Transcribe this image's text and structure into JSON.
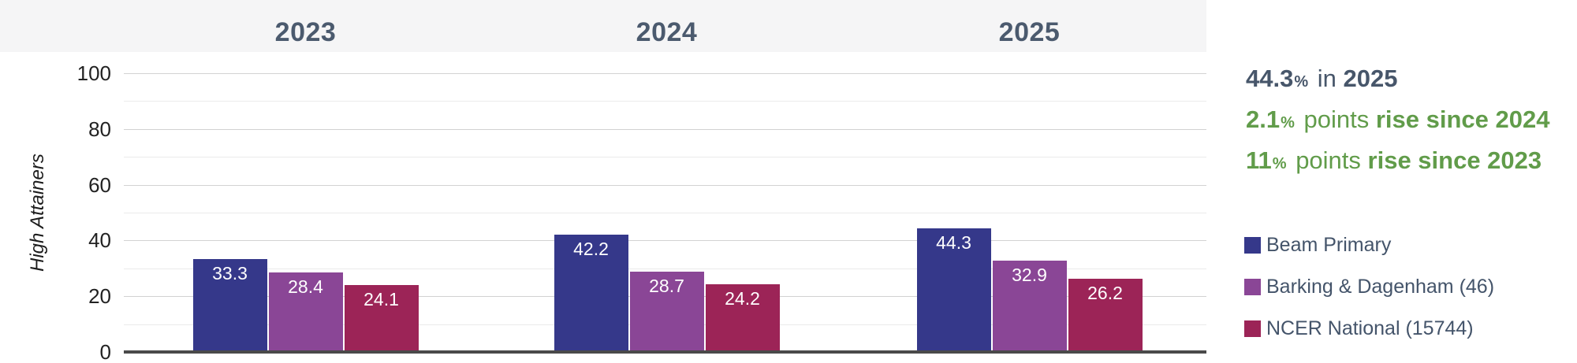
{
  "chart_data": {
    "type": "bar",
    "categories": [
      "2023",
      "2024",
      "2025"
    ],
    "series": [
      {
        "name": "Beam Primary",
        "color": "#35388a",
        "values": [
          33.3,
          42.2,
          44.3
        ]
      },
      {
        "name": "Barking & Dagenham (46)",
        "color": "#8a4696",
        "values": [
          28.4,
          28.7,
          32.9
        ]
      },
      {
        "name": "NCER National (15744)",
        "color": "#9c2457",
        "values": [
          24.1,
          24.2,
          26.2
        ]
      }
    ],
    "title": "",
    "xlabel": "",
    "ylabel": "High Attainers",
    "ylim": [
      0,
      100
    ],
    "yticks": [
      0,
      20,
      40,
      60,
      80,
      100
    ],
    "minor_grid_step": 10,
    "grid": true,
    "value_labels_shown": true,
    "legend_position": "right"
  },
  "side_panel": {
    "stats": [
      {
        "value": "44.3",
        "unit": "%",
        "mid": " in ",
        "emphasis": "2025",
        "color": "#47566a"
      },
      {
        "value": "2.1",
        "unit": "%",
        "mid": " points ",
        "emphasis": "rise since 2024",
        "color": "#619c4a"
      },
      {
        "value": "11",
        "unit": "%",
        "mid": " points ",
        "emphasis": "rise since 2023",
        "color": "#619c4a"
      }
    ]
  },
  "style": {
    "header_text_color": "#4b5a6e",
    "band_color": "#f5f5f6",
    "axis_line_color": "#4a4a4a",
    "major_grid_color": "#d2d2d2",
    "minor_grid_color": "#ebebeb",
    "tick_text_color": "#222222",
    "value_label_color": "#ffffff"
  }
}
